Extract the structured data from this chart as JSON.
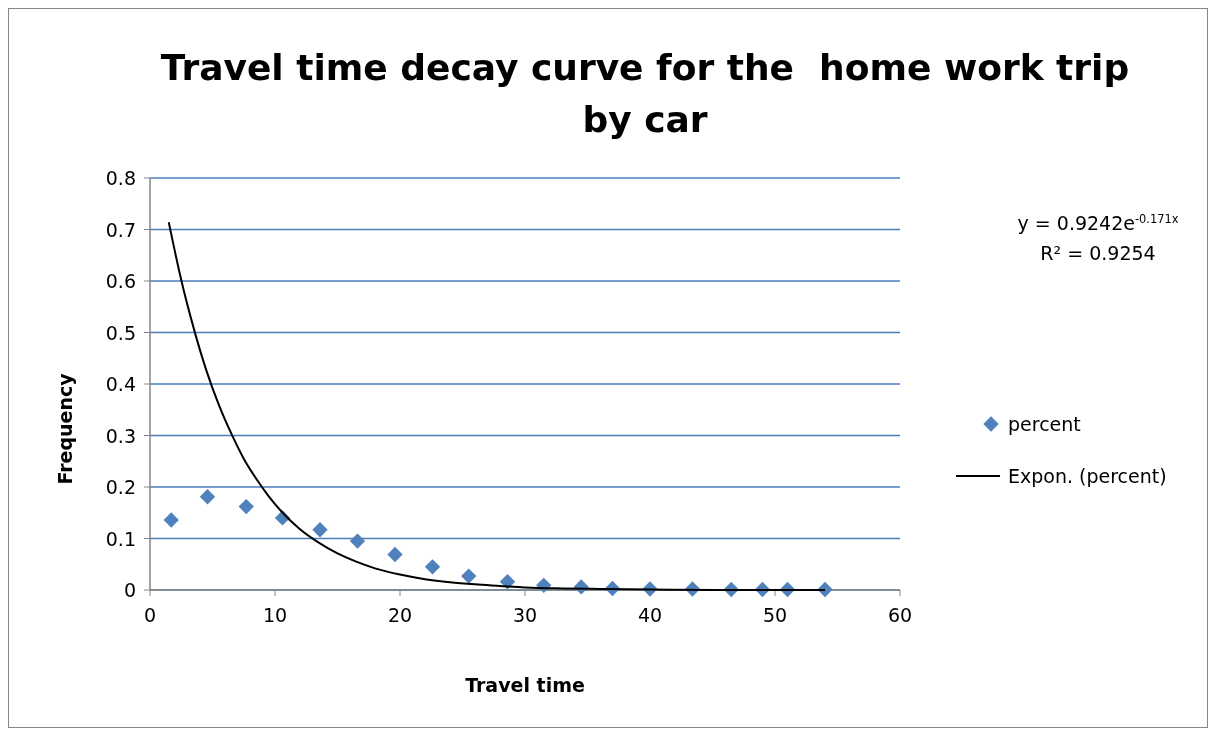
{
  "chart_data": {
    "type": "scatter",
    "title": "Travel time decay curve for the  home work trip by car",
    "xlabel": "Travel time",
    "ylabel": "Frequency",
    "xlim": [
      0,
      60
    ],
    "xticks": [
      0,
      10,
      20,
      30,
      40,
      50,
      60
    ],
    "ylim": [
      0,
      0.8
    ],
    "yticks": [
      0,
      0.1,
      0.2,
      0.3,
      0.4,
      0.5,
      0.6,
      0.7,
      0.8
    ],
    "grid": "y",
    "legend": "right",
    "series": [
      {
        "name": "percent",
        "marker": "diamond",
        "color": "#4f81bd",
        "x": [
          1.7,
          4.6,
          7.7,
          10.6,
          13.6,
          16.6,
          19.6,
          22.6,
          25.5,
          28.6,
          31.5,
          34.5,
          37,
          40,
          43.4,
          46.5,
          49,
          51,
          54
        ],
        "values": [
          0.136,
          0.181,
          0.162,
          0.14,
          0.117,
          0.095,
          0.069,
          0.045,
          0.027,
          0.016,
          0.009,
          0.006,
          0.003,
          0.002,
          0.002,
          0.001,
          0.001,
          0.001,
          0.001
        ]
      },
      {
        "name": "Expon. (percent)",
        "type": "line",
        "marker": "none",
        "line_style": "solid",
        "color": "#000000",
        "x": [
          1.5,
          2.5,
          3.5,
          4.5,
          5.5,
          6.5,
          7.5,
          8.5,
          9.5,
          10.5,
          12,
          13.5,
          15,
          16.5,
          18,
          20,
          22,
          24,
          26,
          28,
          30,
          33,
          36,
          40,
          45,
          50,
          54
        ],
        "values": [
          0.714,
          0.602,
          0.508,
          0.427,
          0.36,
          0.304,
          0.255,
          0.216,
          0.182,
          0.153,
          0.118,
          0.092,
          0.071,
          0.055,
          0.042,
          0.03,
          0.021,
          0.015,
          0.011,
          0.008,
          0.005,
          0.003,
          0.002,
          0.001,
          0,
          0,
          0
        ]
      }
    ],
    "annotations": [
      "y = 0.9242e$^{-0.171x}$",
      "R² = 0.9254"
    ]
  }
}
